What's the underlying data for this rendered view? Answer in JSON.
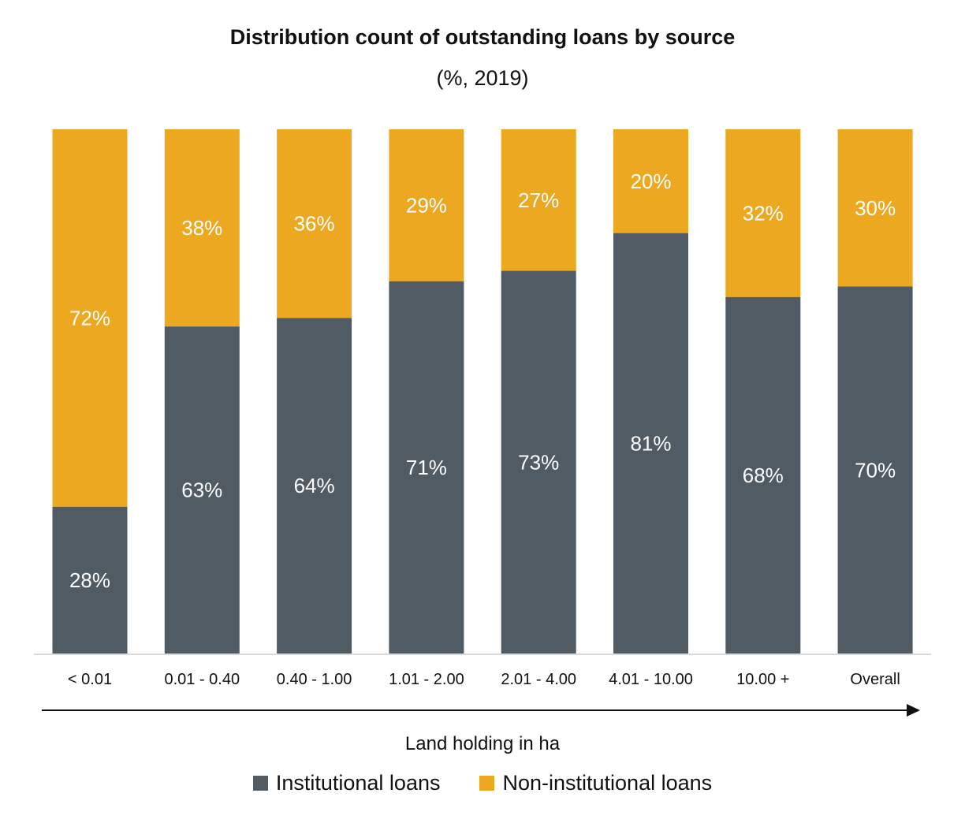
{
  "colors": {
    "institutional": "#515B64",
    "non_institutional": "#ECA820"
  },
  "chart_data": {
    "type": "bar",
    "stacked": true,
    "title": "Distribution count of outstanding loans by source",
    "subtitle": "(%, 2019)",
    "xlabel": "Land holding in ha",
    "categories": [
      "< 0.01",
      "0.01 - 0.40",
      "0.40 - 1.00",
      "1.01 - 2.00",
      "2.01 - 4.00",
      "4.01 - 10.00",
      "10.00 +",
      "Overall"
    ],
    "series": [
      {
        "name": "Institutional loans",
        "values": [
          28,
          63,
          64,
          71,
          73,
          81,
          68,
          70
        ],
        "labels": [
          "28%",
          "63%",
          "64%",
          "71%",
          "73%",
          "81%",
          "68%",
          "70%"
        ]
      },
      {
        "name": "Non-institutional loans",
        "values": [
          72,
          38,
          36,
          29,
          27,
          20,
          32,
          30
        ],
        "labels": [
          "72%",
          "38%",
          "36%",
          "29%",
          "27%",
          "20%",
          "32%",
          "30%"
        ]
      }
    ],
    "ylim": [
      0,
      100
    ],
    "grid": false,
    "legend_position": "bottom"
  }
}
